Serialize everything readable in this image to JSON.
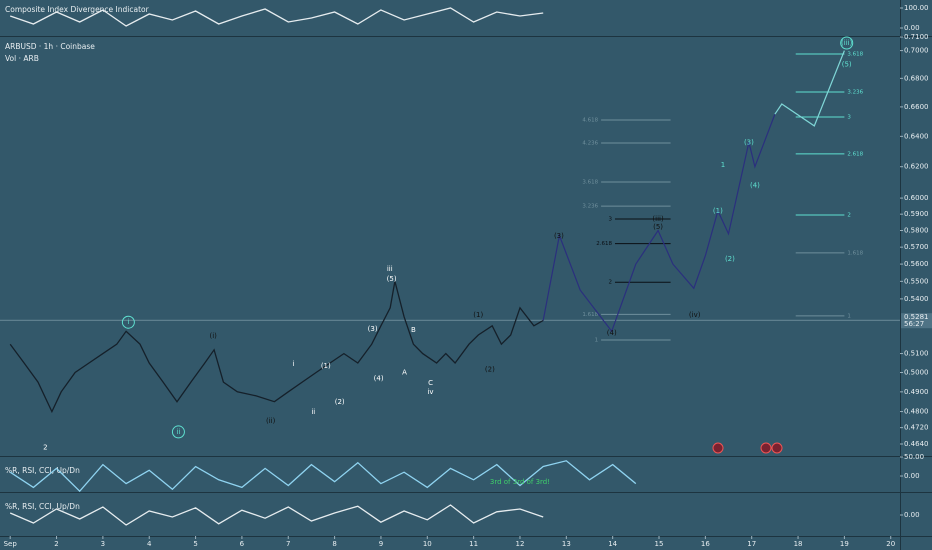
{
  "chart_data": [
    {
      "type": "line",
      "title": "ARBUSD · 1h · Coinbase",
      "subtitle": "Vol · ARB",
      "log": true,
      "xlim": [
        0.78,
        20.2
      ],
      "ylim": [
        0.4587,
        0.713
      ],
      "xticks": [
        {
          "value": 1,
          "label": "Sep"
        },
        2,
        3,
        4,
        5,
        6,
        7,
        8,
        9,
        10,
        11,
        12,
        13,
        14,
        15,
        16,
        17,
        18,
        19,
        20
      ],
      "yticks": [
        {
          "value": 0.71,
          "label": "0.7100"
        },
        {
          "value": 0.7,
          "label": "0.7000"
        },
        {
          "value": 0.68,
          "label": "0.6800"
        },
        {
          "value": 0.66,
          "label": "0.6600"
        },
        {
          "value": 0.64,
          "label": "0.6400"
        },
        {
          "value": 0.62,
          "label": "0.6200"
        },
        {
          "value": 0.6,
          "label": "0.6000"
        },
        {
          "value": 0.59,
          "label": "0.5900"
        },
        {
          "value": 0.58,
          "label": "0.5800"
        },
        {
          "value": 0.57,
          "label": "0.5700"
        },
        {
          "value": 0.56,
          "label": "0.5600"
        },
        {
          "value": 0.55,
          "label": "0.5500"
        },
        {
          "value": 0.54,
          "label": "0.5400"
        },
        {
          "value": 0.51,
          "label": "0.5100"
        },
        {
          "value": 0.5,
          "label": "0.5000"
        },
        {
          "value": 0.49,
          "label": "0.4900"
        },
        {
          "value": 0.48,
          "label": "0.4800"
        },
        {
          "value": 0.472,
          "label": "0.4720"
        },
        {
          "value": 0.464,
          "label": "0.4640"
        }
      ],
      "series": [
        {
          "color": "#15202a",
          "x": [
            1,
            1.3,
            1.6,
            1.9,
            2.1,
            2.4,
            2.7,
            3.0,
            3.3,
            3.5,
            3.8,
            4.0,
            4.3,
            4.6,
            4.9,
            5.2,
            5.4,
            5.6,
            5.9,
            6.3,
            6.7,
            7.0,
            7.3,
            7.6,
            7.9,
            8.2,
            8.5,
            8.8,
            9.0,
            9.2,
            9.3,
            9.5,
            9.7,
            9.9,
            10.2,
            10.4,
            10.6,
            10.9,
            11.1,
            11.4,
            11.6,
            11.8,
            12.0,
            12.3,
            12.5
          ],
          "values": [
            0.515,
            0.505,
            0.495,
            0.48,
            0.49,
            0.5,
            0.505,
            0.51,
            0.515,
            0.522,
            0.515,
            0.505,
            0.495,
            0.485,
            0.495,
            0.505,
            0.512,
            0.495,
            0.49,
            0.488,
            0.485,
            0.49,
            0.495,
            0.5,
            0.505,
            0.51,
            0.505,
            0.515,
            0.525,
            0.535,
            0.55,
            0.53,
            0.515,
            0.51,
            0.505,
            0.51,
            0.505,
            0.515,
            0.52,
            0.525,
            0.515,
            0.52,
            0.535,
            0.525,
            0.528
          ]
        },
        {
          "color": "#2b2f7e",
          "x": [
            12.5,
            12.85,
            13.3,
            13.98,
            14.5,
            14.98,
            15.3,
            15.75,
            16.0,
            16.27,
            16.5,
            16.94,
            17.07,
            17.5
          ],
          "values": [
            0.528,
            0.577,
            0.545,
            0.522,
            0.56,
            0.58,
            0.56,
            0.546,
            0.565,
            0.592,
            0.578,
            0.636,
            0.62,
            0.655
          ]
        },
        {
          "color": "#7fd6d6",
          "x": [
            17.5,
            17.65,
            18.35,
            19.0
          ],
          "values": [
            0.655,
            0.662,
            0.647,
            0.7
          ]
        }
      ],
      "levels": [
        {
          "label": "3.618",
          "y": 0.6975,
          "x": [
            17.95,
            19.0
          ],
          "color": "#5fe0d0"
        },
        {
          "label": "3.236",
          "y": 0.6704,
          "x": [
            17.95,
            19.0
          ],
          "color": "#5fe0d0"
        },
        {
          "label": "3",
          "y": 0.6531,
          "x": [
            17.95,
            19.0
          ],
          "color": "#5fe0d0"
        },
        {
          "label": "2.618",
          "y": 0.6284,
          "x": [
            17.95,
            19.0
          ],
          "color": "#5fe0d0"
        },
        {
          "label": "2",
          "y": 0.5895,
          "x": [
            17.95,
            19.0
          ],
          "color": "#5fe0d0"
        },
        {
          "label": "1.618",
          "y": 0.5666,
          "x": [
            17.95,
            19.0
          ],
          "color": "#6f8f9c"
        },
        {
          "label": "1",
          "y": 0.5305,
          "x": [
            17.95,
            19.0
          ],
          "color": "#6f8f9c"
        },
        {
          "label": "4.618",
          "y": 0.651,
          "x": [
            13.75,
            15.25
          ],
          "color": "#6f8f9c"
        },
        {
          "label": "4.236",
          "y": 0.6356,
          "x": [
            13.75,
            15.25
          ],
          "color": "#6f8f9c"
        },
        {
          "label": "3.618",
          "y": 0.6102,
          "x": [
            13.75,
            15.25
          ],
          "color": "#6f8f9c"
        },
        {
          "label": "3.236",
          "y": 0.595,
          "x": [
            13.75,
            15.25
          ],
          "color": "#6f8f9c"
        },
        {
          "label": "3",
          "y": 0.587,
          "x": [
            14.05,
            15.25
          ],
          "color": "#0b0f14"
        },
        {
          "label": "2.618",
          "y": 0.5721,
          "x": [
            14.05,
            15.25
          ],
          "color": "#0b0f14"
        },
        {
          "label": "2",
          "y": 0.5495,
          "x": [
            14.05,
            15.25
          ],
          "color": "#0b0f14"
        },
        {
          "label": "1.618",
          "y": 0.5313,
          "x": [
            13.75,
            15.25
          ],
          "color": "#6f8f9c"
        },
        {
          "label": "1",
          "y": 0.5173,
          "x": [
            13.75,
            15.25
          ],
          "color": "#6f8f9c"
        }
      ],
      "last_price": {
        "value": 0.5281,
        "label": "0.5281",
        "countdown": "56:27"
      },
      "annotations": [
        {
          "text": "i",
          "x": 3.55,
          "y": 0.527,
          "color": "#5fe0d0",
          "circled": true
        },
        {
          "text": "ii",
          "x": 4.63,
          "y": 0.4699,
          "color": "#5fe0d0",
          "circled": true
        },
        {
          "text": "(i)",
          "x": 5.38,
          "y": 0.5195,
          "color": "#111111"
        },
        {
          "text": "(ii)",
          "x": 6.62,
          "y": 0.4753,
          "color": "#111111"
        },
        {
          "text": "i",
          "x": 7.11,
          "y": 0.5045,
          "color": "#ffffff"
        },
        {
          "text": "ii",
          "x": 7.54,
          "y": 0.4799,
          "color": "#ffffff"
        },
        {
          "text": "(1)",
          "x": 7.81,
          "y": 0.5034,
          "color": "#ffffff"
        },
        {
          "text": "(2)",
          "x": 8.11,
          "y": 0.4849,
          "color": "#ffffff"
        },
        {
          "text": "(3)",
          "x": 8.82,
          "y": 0.5233,
          "color": "#ffffff"
        },
        {
          "text": "(4)",
          "x": 8.95,
          "y": 0.497,
          "color": "#ffffff"
        },
        {
          "text": "iii",
          "x": 9.19,
          "y": 0.557,
          "color": "#ffffff"
        },
        {
          "text": "(5)",
          "x": 9.23,
          "y": 0.5514,
          "color": "#ffffff"
        },
        {
          "text": "A",
          "x": 9.51,
          "y": 0.5,
          "color": "#ffffff"
        },
        {
          "text": "B",
          "x": 9.7,
          "y": 0.5227,
          "color": "#ffffff"
        },
        {
          "text": "C",
          "x": 10.07,
          "y": 0.4945,
          "color": "#ffffff"
        },
        {
          "text": "iv",
          "x": 10.07,
          "y": 0.49,
          "color": "#ffffff"
        },
        {
          "text": "(1)",
          "x": 11.1,
          "y": 0.531,
          "color": "#111111"
        },
        {
          "text": "(2)",
          "x": 11.35,
          "y": 0.5015,
          "color": "#111111"
        },
        {
          "text": "2",
          "x": 1.76,
          "y": 0.4624,
          "color": "#ffffff"
        },
        {
          "text": "(3)",
          "x": 12.84,
          "y": 0.5767,
          "color": "#111111"
        },
        {
          "text": "(4)",
          "x": 13.98,
          "y": 0.5212,
          "color": "#111111"
        },
        {
          "text": "(iii)",
          "x": 14.98,
          "y": 0.587,
          "color": "#111111"
        },
        {
          "text": "(5)",
          "x": 14.98,
          "y": 0.582,
          "color": "#111111"
        },
        {
          "text": "(iv)",
          "x": 15.77,
          "y": 0.531,
          "color": "#111111"
        },
        {
          "text": "1",
          "x": 16.38,
          "y": 0.6211,
          "color": "#5fe0d0"
        },
        {
          "text": "(1)",
          "x": 16.27,
          "y": 0.592,
          "color": "#5fe0d0"
        },
        {
          "text": "(2)",
          "x": 16.53,
          "y": 0.563,
          "color": "#5fe0d0"
        },
        {
          "text": "(3)",
          "x": 16.94,
          "y": 0.636,
          "color": "#5fe0d0"
        },
        {
          "text": "(4)",
          "x": 17.07,
          "y": 0.608,
          "color": "#5fe0d0"
        },
        {
          "text": "(iii)",
          "x": 19.05,
          "y": 0.7056,
          "color": "#5fe0d0",
          "circled": true
        },
        {
          "text": "(5)",
          "x": 19.05,
          "y": 0.69,
          "color": "#5fe0d0"
        }
      ]
    },
    {
      "type": "line",
      "title": "Composite Index Divergence Indicator",
      "xlim": [
        0.78,
        20.2
      ],
      "ylim": [
        -40,
        140
      ],
      "yticks": [
        {
          "value": 100,
          "label": "100.00"
        },
        {
          "value": 0,
          "label": "0.00"
        }
      ],
      "series": [
        {
          "color": "#e6ecef",
          "x": [
            1,
            1.5,
            2,
            2.5,
            3,
            3.5,
            4,
            4.5,
            5,
            5.5,
            6,
            6.5,
            7,
            7.5,
            8,
            8.5,
            9,
            9.5,
            10,
            10.5,
            11,
            11.5,
            12,
            12.5
          ],
          "values": [
            60,
            20,
            80,
            30,
            90,
            10,
            70,
            40,
            85,
            20,
            60,
            95,
            30,
            50,
            80,
            20,
            90,
            40,
            70,
            100,
            30,
            80,
            60,
            75
          ]
        }
      ]
    },
    {
      "type": "line",
      "title": "%R, RSI, CCI, Up/Dn",
      "xlim": [
        0.78,
        20.2
      ],
      "ylim": [
        -42,
        50
      ],
      "yticks": [
        {
          "value": 50,
          "label": "50.00"
        },
        {
          "value": 0,
          "label": "0.00"
        }
      ],
      "series": [
        {
          "color": "#8fd3f0",
          "x": [
            1,
            1.5,
            2,
            2.5,
            3,
            3.5,
            4,
            4.5,
            5,
            5.5,
            6,
            6.5,
            7,
            7.5,
            8,
            8.5,
            9,
            9.5,
            10,
            10.5,
            11,
            11.5,
            12,
            12.5,
            13,
            13.5,
            14,
            14.5
          ],
          "values": [
            10,
            -30,
            20,
            -40,
            30,
            -20,
            15,
            -35,
            25,
            -10,
            -30,
            20,
            -25,
            30,
            -15,
            35,
            -20,
            10,
            -30,
            20,
            -10,
            30,
            -25,
            25,
            40,
            -10,
            30,
            -20
          ]
        }
      ],
      "annotations": [
        {
          "text": "3rd of 3rd of 3rd!",
          "x": 12.0,
          "y": -16,
          "color": "#3fcf6a"
        }
      ]
    },
    {
      "type": "line",
      "title": "%R, RSI, CCI, Up/Dn",
      "xlim": [
        0.78,
        20.2
      ],
      "ylim": [
        -50,
        55
      ],
      "yticks": [
        {
          "value": 0,
          "label": "0.00"
        }
      ],
      "series": [
        {
          "color": "#e6ecef",
          "x": [
            1,
            1.5,
            2,
            2.5,
            3,
            3.5,
            4,
            4.5,
            5,
            5.5,
            6,
            6.5,
            7,
            7.5,
            8,
            8.5,
            9,
            9.5,
            10,
            10.5,
            11,
            11.5,
            12,
            12.5
          ],
          "values": [
            5,
            -20,
            15,
            -10,
            20,
            -25,
            10,
            -5,
            18,
            -22,
            12,
            -8,
            20,
            -15,
            5,
            22,
            -18,
            10,
            -12,
            25,
            -20,
            8,
            15,
            -5
          ]
        }
      ]
    }
  ]
}
